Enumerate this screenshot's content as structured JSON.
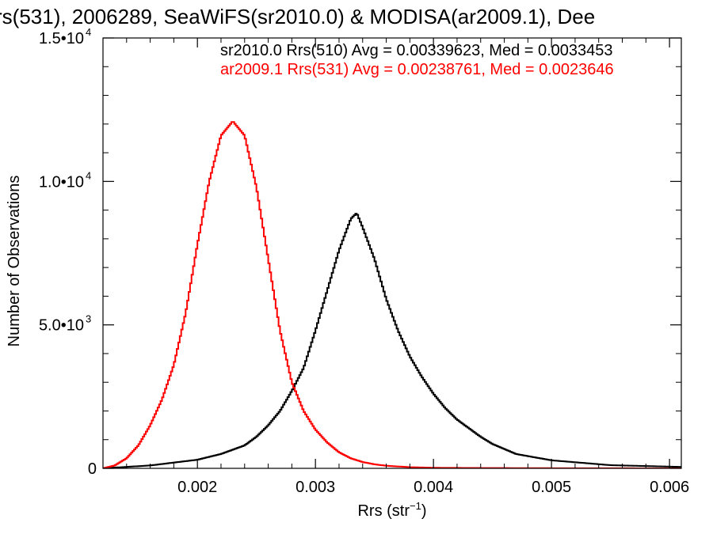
{
  "chart_data": {
    "type": "line",
    "title": "rs(531), 2006289, SeaWiFS(sr2010.0) & MODISA(ar2009.1), Dee",
    "xlabel": "Rrs (str",
    "xlabel_sup": "−1",
    "xlabel_close": ")",
    "ylabel": "Number of Observations",
    "xlim": [
      0.0012,
      0.0061
    ],
    "ylim": [
      0,
      15000
    ],
    "grid": false,
    "legend_position": "top-right",
    "x_ticks": [
      {
        "value": 0.002,
        "label": "0.002"
      },
      {
        "value": 0.003,
        "label": "0.003"
      },
      {
        "value": 0.004,
        "label": "0.004"
      },
      {
        "value": 0.005,
        "label": "0.005"
      },
      {
        "value": 0.006,
        "label": "0.006"
      }
    ],
    "y_ticks": [
      {
        "value": 0,
        "label": "0",
        "exp": ""
      },
      {
        "value": 5000,
        "label": "5.0•10",
        "exp": "3"
      },
      {
        "value": 10000,
        "label": "1.0•10",
        "exp": "4"
      },
      {
        "value": 15000,
        "label": "1.5•10",
        "exp": "4"
      }
    ],
    "series": [
      {
        "name": "sr2010.0 Rrs(510) Avg = 0.00339623, Med = 0.0033453",
        "color": "#000000",
        "x": [
          0.0012,
          0.0014,
          0.0016,
          0.0018,
          0.002,
          0.0022,
          0.0024,
          0.0025,
          0.0026,
          0.0027,
          0.0028,
          0.0029,
          0.003,
          0.0031,
          0.0032,
          0.0033,
          0.00335,
          0.0034,
          0.0035,
          0.0036,
          0.0037,
          0.0038,
          0.0039,
          0.004,
          0.0041,
          0.0042,
          0.0043,
          0.0044,
          0.0045,
          0.0047,
          0.005,
          0.0055,
          0.0061
        ],
        "y": [
          0,
          50,
          100,
          200,
          300,
          500,
          800,
          1100,
          1500,
          2000,
          2700,
          3500,
          4800,
          6200,
          7600,
          8700,
          8900,
          8400,
          7300,
          5900,
          4800,
          3900,
          3200,
          2600,
          2100,
          1700,
          1400,
          1100,
          850,
          500,
          280,
          110,
          50
        ]
      },
      {
        "name": "ar2009.1 Rrs(531) Avg = 0.00238761, Med = 0.0023646",
        "color": "#ff0000",
        "x": [
          0.0012,
          0.0013,
          0.0014,
          0.0015,
          0.0016,
          0.0017,
          0.0018,
          0.0019,
          0.002,
          0.0021,
          0.0022,
          0.0023,
          0.0024,
          0.0025,
          0.0026,
          0.0027,
          0.0028,
          0.0029,
          0.003,
          0.0031,
          0.0032,
          0.0033,
          0.0034,
          0.0035,
          0.0036,
          0.0038,
          0.004,
          0.0045,
          0.005,
          0.0061
        ],
        "y": [
          0,
          100,
          350,
          800,
          1500,
          2400,
          3600,
          5400,
          7800,
          10000,
          11600,
          12100,
          11600,
          9800,
          7300,
          4800,
          3000,
          2000,
          1350,
          900,
          560,
          350,
          220,
          140,
          90,
          40,
          20,
          10,
          5,
          0
        ]
      }
    ]
  }
}
